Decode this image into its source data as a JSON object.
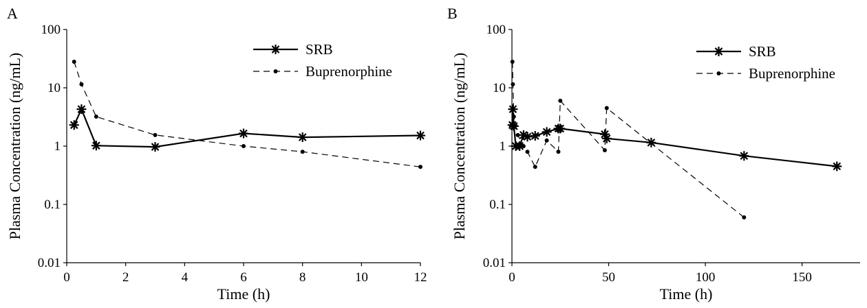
{
  "chart_data": [
    {
      "type": "line",
      "panel_label": "A",
      "xlabel": "Time (h)",
      "ylabel": "Plasma Concentration (ng/mL)",
      "xlim": [
        0,
        12
      ],
      "ylim": [
        0.01,
        100
      ],
      "yscale": "log",
      "x_ticks": [
        0,
        2,
        4,
        6,
        8,
        10,
        12
      ],
      "y_ticks": [
        0.01,
        0.1,
        1,
        10,
        100
      ],
      "x_tick_labels": [
        "0",
        "2",
        "4",
        "6",
        "8",
        "10",
        "12"
      ],
      "y_tick_labels": [
        "0.01",
        "0.1",
        "1",
        "10",
        "100"
      ],
      "legend_position": "top-right",
      "grid": false,
      "series": [
        {
          "name": "SRB",
          "style": "solid",
          "marker": "asterisk",
          "color": "#000000",
          "points": [
            [
              0.25,
              2.3
            ],
            [
              0.5,
              4.3
            ],
            [
              1,
              1.02
            ],
            [
              3,
              0.97
            ],
            [
              6,
              1.65
            ],
            [
              8,
              1.42
            ],
            [
              12,
              1.52
            ]
          ]
        },
        {
          "name": "Buprenorphine",
          "style": "dashed",
          "marker": "dot",
          "color": "#000000",
          "points": [
            [
              0.25,
              28
            ],
            [
              0.5,
              11.5
            ],
            [
              1,
              3.2
            ],
            [
              3,
              1.55
            ],
            [
              6,
              1.0
            ],
            [
              8,
              0.8
            ],
            [
              12,
              0.44
            ]
          ]
        }
      ]
    },
    {
      "type": "line",
      "panel_label": "B",
      "xlabel": "Time (h)",
      "ylabel": "Plasma Concentration (ng/mL)",
      "xlim": [
        0,
        180
      ],
      "ylim": [
        0.01,
        100
      ],
      "yscale": "log",
      "x_ticks": [
        0,
        50,
        100,
        150
      ],
      "y_ticks": [
        0.01,
        0.1,
        1,
        10,
        100
      ],
      "x_tick_labels": [
        "0",
        "50",
        "100",
        "150"
      ],
      "y_tick_labels": [
        "0.01",
        "0.1",
        "1",
        "10",
        "100"
      ],
      "legend_position": "top-right",
      "grid": false,
      "series": [
        {
          "name": "SRB",
          "style": "solid",
          "marker": "asterisk",
          "color": "#000000",
          "points": [
            [
              0.25,
              2.3
            ],
            [
              0.5,
              4.3
            ],
            [
              1,
              2.2
            ],
            [
              2,
              1.0
            ],
            [
              4,
              1.0
            ],
            [
              6,
              1.55
            ],
            [
              8,
              1.45
            ],
            [
              12,
              1.5
            ],
            [
              18,
              1.75
            ],
            [
              24,
              2.0
            ],
            [
              25,
              2.0
            ],
            [
              48,
              1.6
            ],
            [
              49,
              1.35
            ],
            [
              72,
              1.15
            ],
            [
              120,
              0.68
            ],
            [
              168,
              0.45
            ]
          ]
        },
        {
          "name": "Buprenorphine",
          "style": "dashed",
          "marker": "dot",
          "color": "#000000",
          "points": [
            [
              0.25,
              28
            ],
            [
              0.5,
              11.5
            ],
            [
              1,
              3.2
            ],
            [
              3,
              1.55
            ],
            [
              6,
              1.0
            ],
            [
              8,
              0.8
            ],
            [
              12,
              0.44
            ],
            [
              18,
              1.25
            ],
            [
              24,
              0.8
            ],
            [
              25,
              6.0
            ],
            [
              48,
              0.85
            ],
            [
              49,
              4.5
            ],
            [
              120,
              0.06
            ]
          ]
        }
      ]
    }
  ]
}
